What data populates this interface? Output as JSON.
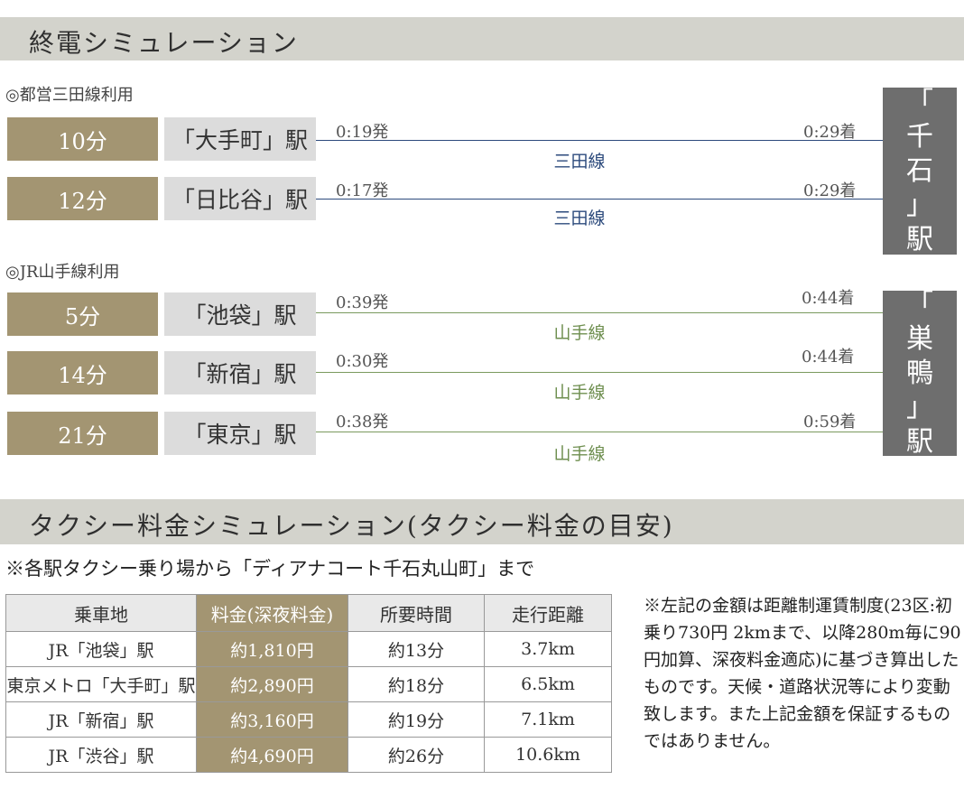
{
  "section1": {
    "title": "終電シミュレーション",
    "mita": {
      "label": "◎都営三田線利用",
      "rows": [
        {
          "time": "10分",
          "station": "「大手町」駅",
          "dep": "0:19発",
          "arr": "0:29着",
          "line": "三田線"
        },
        {
          "time": "12分",
          "station": "「日比谷」駅",
          "dep": "0:17発",
          "arr": "0:29着",
          "line": "三田線"
        }
      ],
      "dest": [
        "「",
        "千",
        "石",
        "」",
        "駅"
      ]
    },
    "yamanote": {
      "label": "◎JR山手線利用",
      "rows": [
        {
          "time": "5分",
          "station": "「池袋」駅",
          "dep": "0:39発",
          "arr": "0:44着",
          "line": "山手線"
        },
        {
          "time": "14分",
          "station": "「新宿」駅",
          "dep": "0:30発",
          "arr": "0:44着",
          "line": "山手線"
        },
        {
          "time": "21分",
          "station": "「東京」駅",
          "dep": "0:38発",
          "arr": "0:59着",
          "line": "山手線"
        }
      ],
      "dest": [
        "「",
        "巣",
        "鴨",
        "」",
        "駅"
      ]
    },
    "colors": {
      "mita_line": "#2c4a7c",
      "yamanote_line": "#7a9a5e",
      "time_box": "#a39572",
      "dest_box": "#6e6e6e"
    }
  },
  "section2": {
    "title": "タクシー料金シミュレーション(タクシー料金の目安)",
    "note": "※各駅タクシー乗り場から「ディアナコート千石丸山町」まで",
    "table": {
      "headers": [
        "乗車地",
        "料金(深夜料金)",
        "所要時間",
        "走行距離"
      ],
      "rows": [
        [
          "JR「池袋」駅",
          "約1,810円",
          "約13分",
          "3.7km"
        ],
        [
          "東京メトロ「大手町」駅",
          "約2,890円",
          "約18分",
          "6.5km"
        ],
        [
          "JR「新宿」駅",
          "約3,160円",
          "約19分",
          "7.1km"
        ],
        [
          "JR「渋谷」駅",
          "約4,690円",
          "約26分",
          "10.6km"
        ]
      ]
    },
    "remark": "※左記の金額は距離制運賃制度(23区:初乗り730円 2kmまで、以降280m毎に90円加算、深夜料金適応)に基づき算出したものです。天候・道路状況等により変動致します。また上記金額を保証するものではありません。"
  }
}
